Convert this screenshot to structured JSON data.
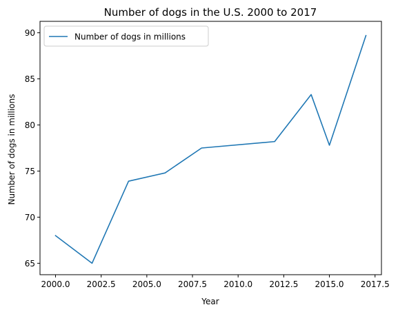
{
  "chart_data": {
    "type": "line",
    "title": "Number of dogs in the U.S. 2000 to 2017",
    "xlabel": "Year",
    "ylabel": "Number of dogs in millions",
    "xlim": [
      1999.15,
      2017.85
    ],
    "ylim": [
      63.76,
      91.24
    ],
    "x_ticks": [
      2000.0,
      2002.5,
      2005.0,
      2007.5,
      2010.0,
      2012.5,
      2015.0,
      2017.5
    ],
    "x_tick_labels": [
      "2000.0",
      "2002.5",
      "2005.0",
      "2007.5",
      "2010.0",
      "2012.5",
      "2015.0",
      "2017.5"
    ],
    "y_ticks": [
      65,
      70,
      75,
      80,
      85,
      90
    ],
    "y_tick_labels": [
      "65",
      "70",
      "75",
      "80",
      "85",
      "90"
    ],
    "grid": false,
    "legend_position": "top-left",
    "series": [
      {
        "name": "Number of dogs in millions",
        "color": "#1f77b4",
        "x": [
          2000,
          2002,
          2004,
          2006,
          2008,
          2012,
          2014,
          2015,
          2017
        ],
        "y": [
          68.0,
          65.0,
          73.9,
          74.8,
          77.5,
          78.2,
          83.3,
          77.8,
          89.7
        ]
      }
    ]
  }
}
